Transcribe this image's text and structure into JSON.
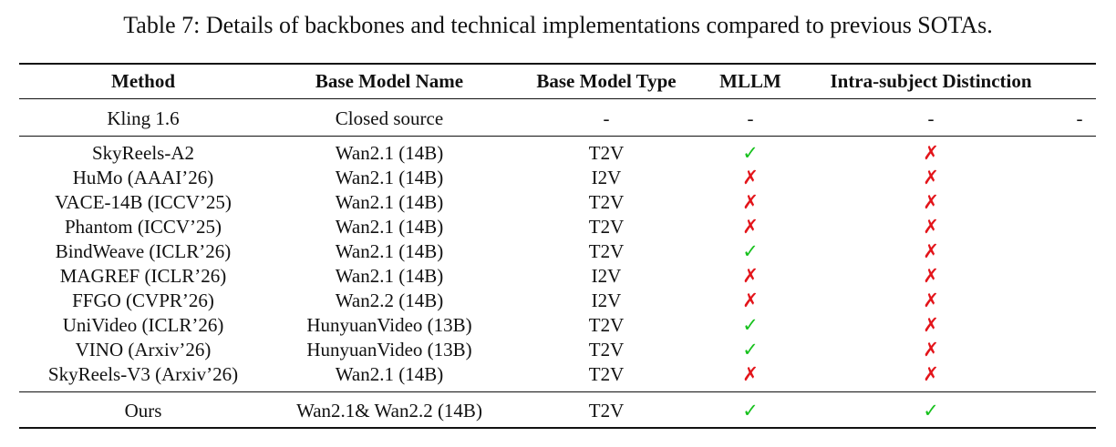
{
  "caption": "Table 7: Details of backbones and technical implementations compared to previous SOTAs.",
  "headers": {
    "method": "Method",
    "base_model_name": "Base Model Name",
    "base_model_type": "Base Model Type",
    "mllm": "MLLM",
    "intra_subject_distinction": "Intra-subject Distinction"
  },
  "closed_row": {
    "method": "Kling 1.6",
    "base_model_name": "Closed source",
    "base_model_type": "-",
    "mllm": "-",
    "intra_subject_distinction": "-",
    "extra": "-"
  },
  "rows": [
    {
      "method": "SkyReels-A2",
      "base_model_name": "Wan2.1 (14B)",
      "base_model_type": "T2V",
      "mllm": true,
      "intra": false
    },
    {
      "method": "HuMo (AAAI’26)",
      "base_model_name": "Wan2.1 (14B)",
      "base_model_type": "I2V",
      "mllm": false,
      "intra": false
    },
    {
      "method": "VACE-14B (ICCV’25)",
      "base_model_name": "Wan2.1 (14B)",
      "base_model_type": "T2V",
      "mllm": false,
      "intra": false
    },
    {
      "method": "Phantom (ICCV’25)",
      "base_model_name": "Wan2.1 (14B)",
      "base_model_type": "T2V",
      "mllm": false,
      "intra": false
    },
    {
      "method": "BindWeave (ICLR’26)",
      "base_model_name": "Wan2.1 (14B)",
      "base_model_type": "T2V",
      "mllm": true,
      "intra": false
    },
    {
      "method": "MAGREF (ICLR’26)",
      "base_model_name": "Wan2.1 (14B)",
      "base_model_type": "I2V",
      "mllm": false,
      "intra": false
    },
    {
      "method": "FFGO (CVPR’26)",
      "base_model_name": "Wan2.2 (14B)",
      "base_model_type": "I2V",
      "mllm": false,
      "intra": false
    },
    {
      "method": "UniVideo (ICLR’26)",
      "base_model_name": "HunyuanVideo (13B)",
      "base_model_type": "T2V",
      "mllm": true,
      "intra": false
    },
    {
      "method": "VINO (Arxiv’26)",
      "base_model_name": "HunyuanVideo (13B)",
      "base_model_type": "T2V",
      "mllm": true,
      "intra": false
    },
    {
      "method": "SkyReels-V3 (Arxiv’26)",
      "base_model_name": "Wan2.1 (14B)",
      "base_model_type": "T2V",
      "mllm": false,
      "intra": false
    }
  ],
  "ours_row": {
    "method": "Ours",
    "base_model_name": "Wan2.1& Wan2.2 (14B)",
    "base_model_type": "T2V",
    "mllm": true,
    "intra": true
  },
  "symbols": {
    "check": "✓",
    "cross": "✗"
  },
  "colors": {
    "check": "#17c11d",
    "cross": "#e3141a"
  }
}
